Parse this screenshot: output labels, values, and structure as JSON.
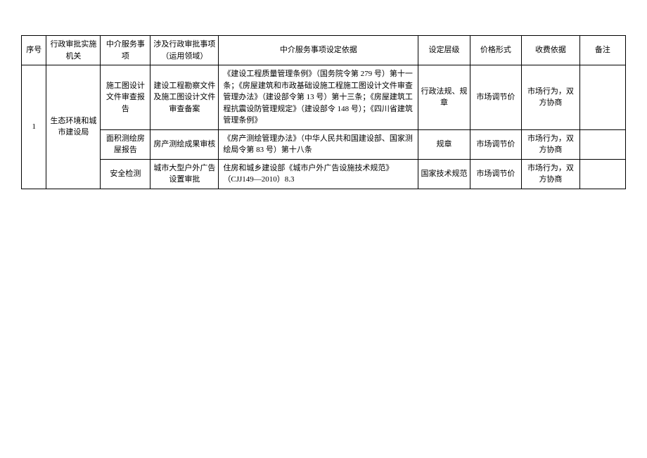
{
  "table": {
    "columns": [
      "序号",
      "行政审批实施机关",
      "中介服务事项",
      "涉及行政审批事项（运用领域）",
      "中介服务事项设定依据",
      "设定层级",
      "价格形式",
      "收费依据",
      "备注"
    ],
    "index": "1",
    "agency": "生态环境和城市建设局",
    "rows": [
      {
        "service": "施工图设计文件审查报告",
        "admin_item": "建设工程勘察文件及施工图设计文件审查备案",
        "basis": "《建设工程质量管理条例》（国务院令第 279 号）第十一条；《房屋建筑和市政基础设施工程施工图设计文件审查管理办法》（建设部令第 13 号）第十三条；《房屋建筑工程抗震设防管理规定》（建设部令 148 号）；《四川省建筑管理条例》",
        "level": "行政法规、规章",
        "price_form": "市场调节价",
        "fee_basis": "市场行为，双方协商",
        "remark": ""
      },
      {
        "service": "面积测绘房屋报告",
        "admin_item": "房产测绘成果审核",
        "basis": "《房产测绘管理办法》（中华人民共和国建设部、国家测绘局令第 83 号）第十八条",
        "level": "规章",
        "price_form": "市场调节价",
        "fee_basis": "市场行为，双方协商",
        "remark": ""
      },
      {
        "service": "安全检测",
        "admin_item": "城市大型户外广告设置审批",
        "basis": "住房和城乡建设部《城市户外广告设施技术规范》（CJJ149—2010）8.3",
        "level": "国家技术规范",
        "price_form": "市场调节价",
        "fee_basis": "市场行为，双方协商",
        "remark": ""
      }
    ]
  },
  "styling": {
    "font_family": "SimSun",
    "font_size_pt": 11,
    "border_color": "#000000",
    "background_color": "#ffffff",
    "text_color": "#000000"
  }
}
